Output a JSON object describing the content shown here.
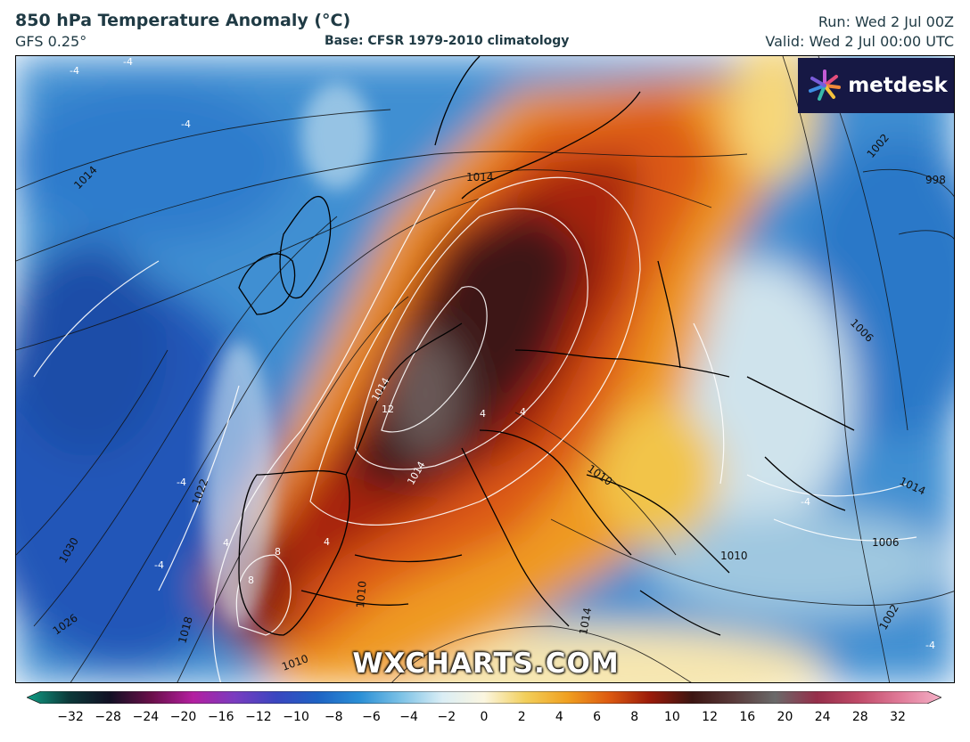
{
  "header": {
    "title": "850 hPa Temperature Anomaly (°C)",
    "model": "GFS 0.25°",
    "base": "Base: CFSR 1979-2010 climatology",
    "run": "Run: Wed 2 Jul 00Z",
    "valid": "Valid: Wed 2 Jul 00:00 UTC"
  },
  "brand": {
    "logo": "metdesk",
    "watermark": "WXCHARTS.COM",
    "logo_icon": "starburst-icon"
  },
  "map": {
    "region": "Europe and North Atlantic",
    "isobar_labels": [
      "1014",
      "1014",
      "1014",
      "1022",
      "1030",
      "1026",
      "1018",
      "1010",
      "1010",
      "1014",
      "1010",
      "1014",
      "1014",
      "1010",
      "1006",
      "1006",
      "1002",
      "1002",
      "998",
      "1010",
      "1010"
    ],
    "anomaly_labels": [
      "12",
      "8",
      "8",
      "4",
      "4",
      "-4",
      "-4",
      "-4",
      "-4",
      "-4",
      "-4",
      "4",
      "4"
    ]
  },
  "colorbar": {
    "ticks": [
      "−32",
      "−28",
      "−24",
      "−20",
      "−16",
      "−12",
      "−10",
      "−8",
      "−6",
      "−4",
      "−2",
      "0",
      "2",
      "4",
      "6",
      "8",
      "10",
      "12",
      "16",
      "20",
      "24",
      "28",
      "32"
    ],
    "stops": [
      "#0f9e85",
      "#0c3a3a",
      "#121024",
      "#6a0f4a",
      "#b41fa0",
      "#7a3cc0",
      "#3a46c0",
      "#1e63c4",
      "#2a8fd6",
      "#7cc2e6",
      "#dbeef5",
      "#fbf6e0",
      "#f2cf5a",
      "#f0a020",
      "#dd5a10",
      "#9a1a0a",
      "#3c1512",
      "#5a3a3a",
      "#6a6a6a",
      "#962e4a",
      "#c04a68",
      "#e07a98",
      "#f4b0c6"
    ]
  }
}
